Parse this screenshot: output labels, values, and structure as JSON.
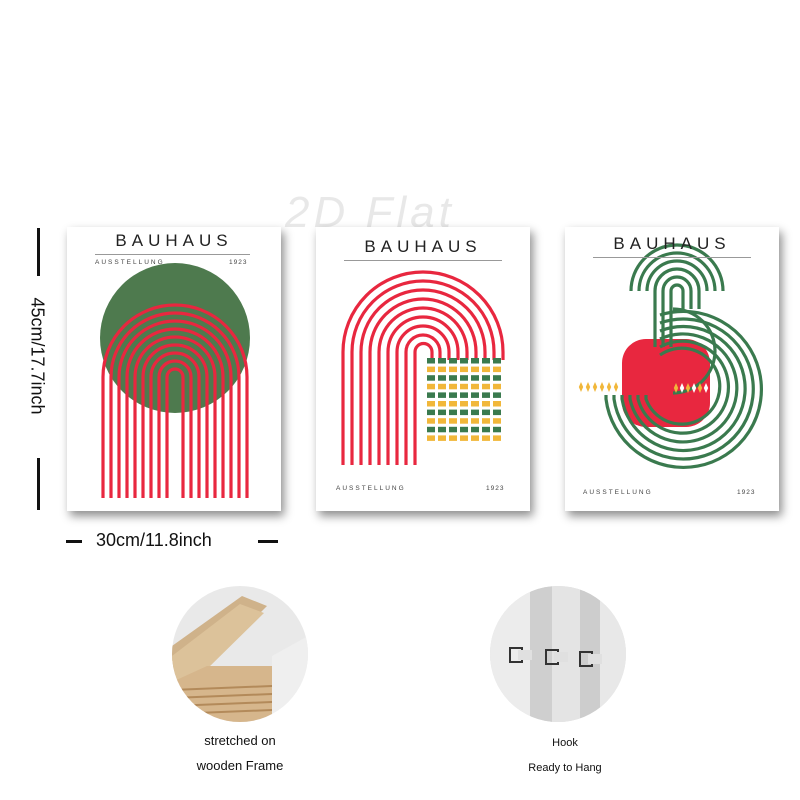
{
  "watermark": "2D Flat",
  "posters": [
    {
      "title": "BAUHAUS",
      "subtitle": "AUSSTELLUNG",
      "year": "1923"
    },
    {
      "title": "BAUHAUS",
      "subtitle": "AUSSTELLUNG",
      "year": "1923"
    },
    {
      "title": "BAUHAUS",
      "subtitle": "AUSSTELLUNG",
      "year": "1923"
    }
  ],
  "dimensions": {
    "height_label": "45cm/17.7inch",
    "width_label": "30cm/11.8inch"
  },
  "features": [
    {
      "icon": "wooden-frame-photo",
      "line1": "stretched on",
      "line2": "wooden Frame"
    },
    {
      "icon": "hook-photo",
      "line1": "Hook",
      "line2": "Ready to Hang"
    }
  ],
  "colors": {
    "red": "#e8273f",
    "green": "#3a7a4e",
    "olive_green": "#4e7a4e",
    "yellow": "#f1b73a"
  }
}
